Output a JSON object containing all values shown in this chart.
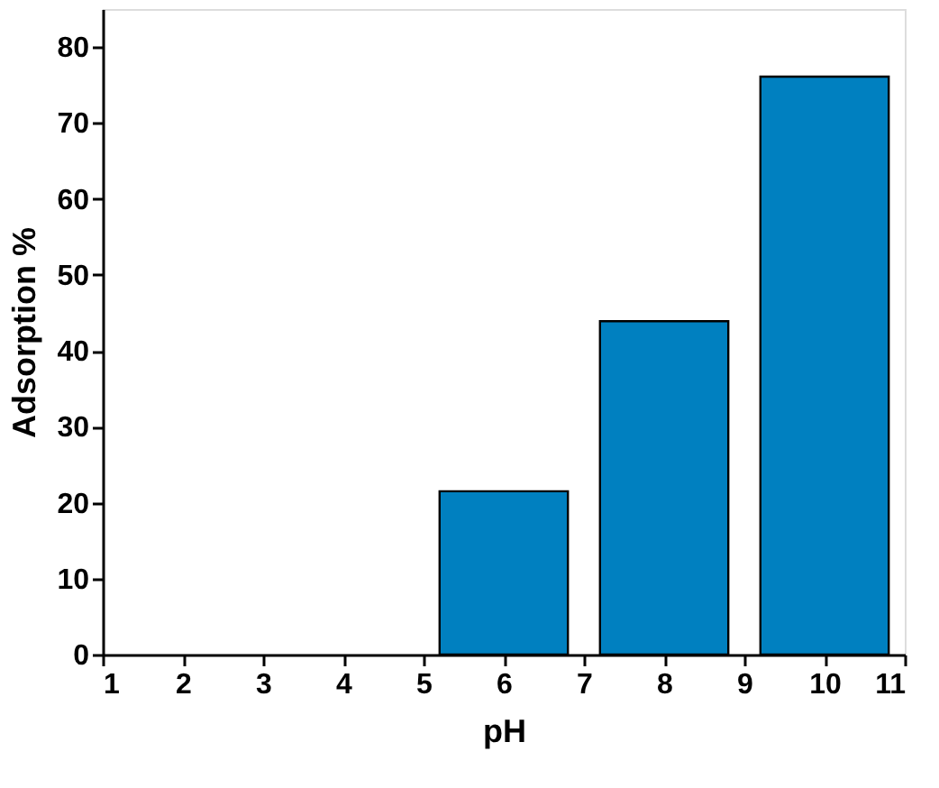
{
  "chart_data": {
    "type": "bar",
    "xlabel": "pH",
    "ylabel": "Adsorption %",
    "x": [
      6,
      8,
      10
    ],
    "values": [
      21.5,
      43.9,
      76.1
    ],
    "color": "#0080c0",
    "xlim": [
      1,
      11
    ],
    "xticks": [
      1,
      2,
      3,
      4,
      5,
      6,
      7,
      8,
      9,
      10,
      11
    ],
    "ylim": [
      0,
      85
    ],
    "yticks": [
      0,
      10,
      20,
      30,
      40,
      50,
      60,
      70,
      80
    ],
    "grid": false
  }
}
